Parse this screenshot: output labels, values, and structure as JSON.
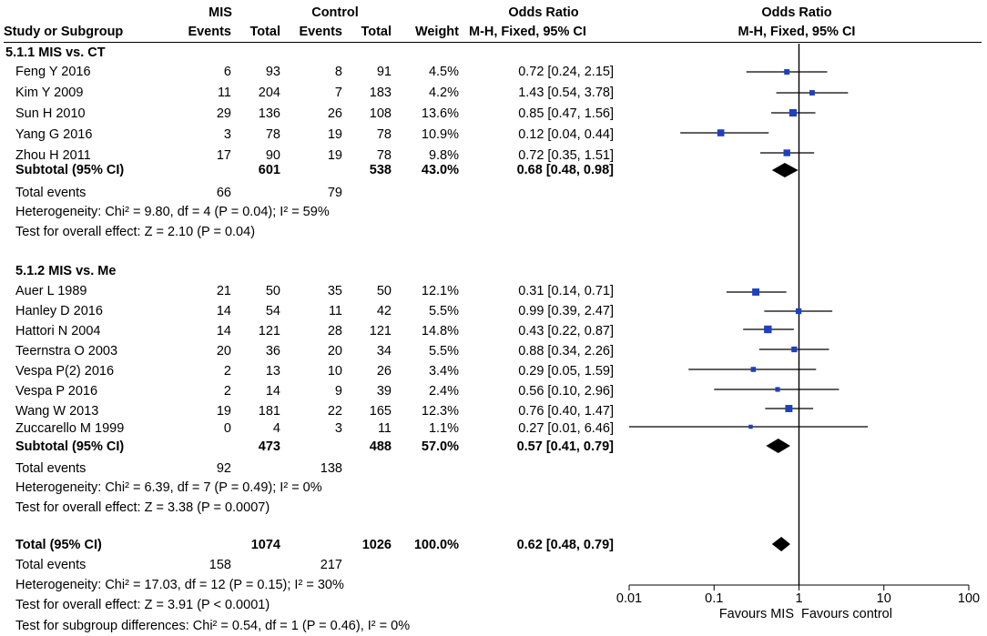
{
  "headers": {
    "study": "Study or Subgroup",
    "mis_group": "MIS",
    "control_group": "Control",
    "events": "Events",
    "total": "Total",
    "weight": "Weight",
    "or_title": "Odds Ratio",
    "or_method": "M-H, Fixed, 95% CI",
    "plot_title": "Odds Ratio",
    "plot_method": "M-H, Fixed, 95% CI"
  },
  "subgroups": [
    {
      "title": "5.1.1 MIS vs. CT",
      "studies": [
        {
          "name": "Feng Y 2016",
          "e1": "6",
          "n1": "93",
          "e2": "8",
          "n2": "91",
          "weight": "4.5%",
          "ci": "0.72 [0.24, 2.15]"
        },
        {
          "name": "Kim Y 2009",
          "e1": "11",
          "n1": "204",
          "e2": "7",
          "n2": "183",
          "weight": "4.2%",
          "ci": "1.43 [0.54, 3.78]"
        },
        {
          "name": "Sun H 2010",
          "e1": "29",
          "n1": "136",
          "e2": "26",
          "n2": "108",
          "weight": "13.6%",
          "ci": "0.85 [0.47, 1.56]"
        },
        {
          "name": "Yang G 2016",
          "e1": "3",
          "n1": "78",
          "e2": "19",
          "n2": "78",
          "weight": "10.9%",
          "ci": "0.12 [0.04, 0.44]"
        },
        {
          "name": "Zhou H 2011",
          "e1": "17",
          "n1": "90",
          "e2": "19",
          "n2": "78",
          "weight": "9.8%",
          "ci": "0.72 [0.35, 1.51]"
        }
      ],
      "subtotal": {
        "label": "Subtotal (95% CI)",
        "n1": "601",
        "n2": "538",
        "weight": "43.0%",
        "ci": "0.68 [0.48, 0.98]"
      },
      "total_events": {
        "label": "Total events",
        "e1": "66",
        "e2": "79"
      },
      "heterogeneity": "Heterogeneity: Chi² = 9.80, df = 4 (P = 0.04); I² = 59%",
      "overall": "Test for overall effect: Z = 2.10 (P = 0.04)"
    },
    {
      "title": "5.1.2 MIS vs. Me",
      "studies": [
        {
          "name": "Auer L 1989",
          "e1": "21",
          "n1": "50",
          "e2": "35",
          "n2": "50",
          "weight": "12.1%",
          "ci": "0.31 [0.14, 0.71]"
        },
        {
          "name": "Hanley D 2016",
          "e1": "14",
          "n1": "54",
          "e2": "11",
          "n2": "42",
          "weight": "5.5%",
          "ci": "0.99 [0.39, 2.47]"
        },
        {
          "name": "Hattori N 2004",
          "e1": "14",
          "n1": "121",
          "e2": "28",
          "n2": "121",
          "weight": "14.8%",
          "ci": "0.43 [0.22, 0.87]"
        },
        {
          "name": "Teernstra O 2003",
          "e1": "20",
          "n1": "36",
          "e2": "20",
          "n2": "34",
          "weight": "5.5%",
          "ci": "0.88 [0.34, 2.26]"
        },
        {
          "name": "Vespa P(2) 2016",
          "e1": "2",
          "n1": "13",
          "e2": "10",
          "n2": "26",
          "weight": "3.4%",
          "ci": "0.29 [0.05, 1.59]"
        },
        {
          "name": "Vespa P 2016",
          "e1": "2",
          "n1": "14",
          "e2": "9",
          "n2": "39",
          "weight": "2.4%",
          "ci": "0.56 [0.10, 2.96]"
        },
        {
          "name": "Wang W 2013",
          "e1": "19",
          "n1": "181",
          "e2": "22",
          "n2": "165",
          "weight": "12.3%",
          "ci": "0.76 [0.40, 1.47]"
        },
        {
          "name": "Zuccarello M 1999",
          "e1": "0",
          "n1": "4",
          "e2": "3",
          "n2": "11",
          "weight": "1.1%",
          "ci": "0.27 [0.01, 6.46]"
        }
      ],
      "subtotal": {
        "label": "Subtotal (95% CI)",
        "n1": "473",
        "n2": "488",
        "weight": "57.0%",
        "ci": "0.57 [0.41, 0.79]"
      },
      "total_events": {
        "label": "Total events",
        "e1": "92",
        "e2": "138"
      },
      "heterogeneity": "Heterogeneity: Chi² = 6.39, df = 7 (P = 0.49); I² = 0%",
      "overall": "Test for overall effect: Z = 3.38 (P = 0.0007)"
    }
  ],
  "total": {
    "label": "Total (95% CI)",
    "n1": "1074",
    "n2": "1026",
    "weight": "100.0%",
    "ci": "0.62 [0.48, 0.79]",
    "events_label": "Total events",
    "e1": "158",
    "e2": "217",
    "heterogeneity": "Heterogeneity: Chi² = 17.03, df = 12 (P = 0.15); I² = 30%",
    "overall": "Test for overall effect: Z = 3.91 (P < 0.0001)",
    "subgroup_diff": "Test for subgroup differences: Chi² = 0.54, df = 1 (P = 0.46), I² = 0%"
  },
  "axis": {
    "ticks": [
      "0.01",
      "0.1",
      "1",
      "10",
      "100"
    ],
    "favours_left": "Favours MIS",
    "favours_right": "Favours control"
  },
  "chart_data": {
    "type": "forest",
    "title": "Odds Ratio",
    "method": "M-H, Fixed, 95% CI",
    "xscale": "log",
    "xlim": [
      0.01,
      100
    ],
    "ticks": [
      0.01,
      0.1,
      1,
      10,
      100
    ],
    "null_line": 1,
    "colors": {
      "square": "#1f3fbf",
      "line": "#000000",
      "diamond": "#000000"
    },
    "rows": [
      {
        "label": "Feng Y 2016",
        "or": 0.72,
        "lo": 0.24,
        "hi": 2.15,
        "weight": 4.5
      },
      {
        "label": "Kim Y 2009",
        "or": 1.43,
        "lo": 0.54,
        "hi": 3.78,
        "weight": 4.2
      },
      {
        "label": "Sun H 2010",
        "or": 0.85,
        "lo": 0.47,
        "hi": 1.56,
        "weight": 13.6
      },
      {
        "label": "Yang G 2016",
        "or": 0.12,
        "lo": 0.04,
        "hi": 0.44,
        "weight": 10.9
      },
      {
        "label": "Zhou H 2011",
        "or": 0.72,
        "lo": 0.35,
        "hi": 1.51,
        "weight": 9.8
      },
      {
        "label": "Subtotal 5.1.1",
        "or": 0.68,
        "lo": 0.48,
        "hi": 0.98,
        "diamond": true
      },
      {
        "label": "Auer L 1989",
        "or": 0.31,
        "lo": 0.14,
        "hi": 0.71,
        "weight": 12.1
      },
      {
        "label": "Hanley D 2016",
        "or": 0.99,
        "lo": 0.39,
        "hi": 2.47,
        "weight": 5.5
      },
      {
        "label": "Hattori N 2004",
        "or": 0.43,
        "lo": 0.22,
        "hi": 0.87,
        "weight": 14.8
      },
      {
        "label": "Teernstra O 2003",
        "or": 0.88,
        "lo": 0.34,
        "hi": 2.26,
        "weight": 5.5
      },
      {
        "label": "Vespa P(2) 2016",
        "or": 0.29,
        "lo": 0.05,
        "hi": 1.59,
        "weight": 3.4
      },
      {
        "label": "Vespa P 2016",
        "or": 0.56,
        "lo": 0.1,
        "hi": 2.96,
        "weight": 2.4
      },
      {
        "label": "Wang W 2013",
        "or": 0.76,
        "lo": 0.4,
        "hi": 1.47,
        "weight": 12.3
      },
      {
        "label": "Zuccarello M 1999",
        "or": 0.27,
        "lo": 0.01,
        "hi": 6.46,
        "weight": 1.1
      },
      {
        "label": "Subtotal 5.1.2",
        "or": 0.57,
        "lo": 0.41,
        "hi": 0.79,
        "diamond": true
      },
      {
        "label": "Total",
        "or": 0.62,
        "lo": 0.48,
        "hi": 0.79,
        "diamond": true
      }
    ]
  }
}
